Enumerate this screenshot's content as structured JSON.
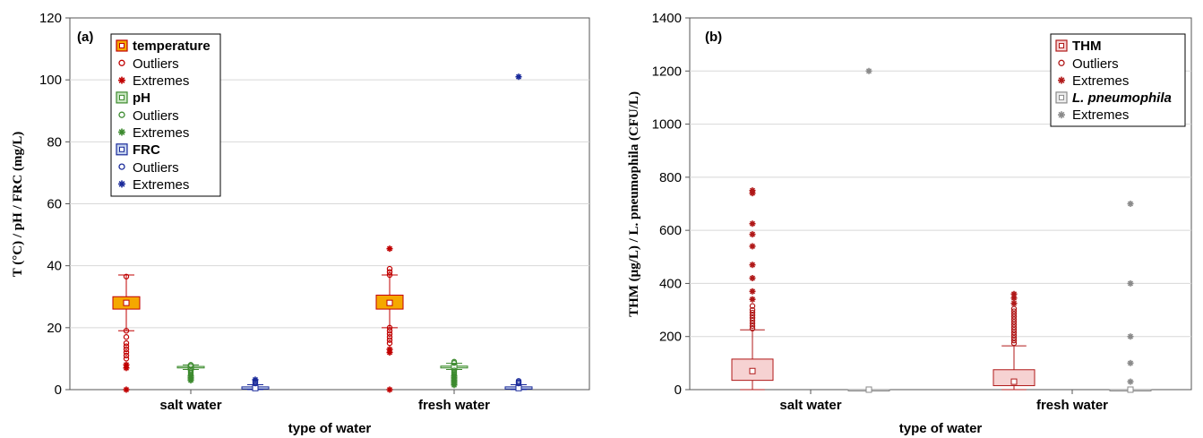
{
  "chart_data": [
    {
      "type": "box",
      "panel_label": "(a)",
      "xlabel": "type of water",
      "ylabel": "T (°C) / pH / FRC (mg/L)",
      "ylim": [
        0,
        120
      ],
      "yticks": [
        0,
        20,
        40,
        60,
        80,
        100,
        120
      ],
      "grid": "horizontal",
      "legend_position": "top-left",
      "categories": [
        "salt water",
        "fresh water"
      ],
      "legend": [
        {
          "label": "temperature",
          "kind": "box",
          "bold": true,
          "color": "#f5a800",
          "edge": "#c00000"
        },
        {
          "label": "Outliers",
          "kind": "outlier",
          "color": "#c00000"
        },
        {
          "label": "Extremes",
          "kind": "extreme",
          "color": "#c00000"
        },
        {
          "label": "pH",
          "kind": "box",
          "bold": true,
          "color": "#c8e6c0",
          "edge": "#3c8a2e"
        },
        {
          "label": "Outliers",
          "kind": "outlier",
          "color": "#3c8a2e"
        },
        {
          "label": "Extremes",
          "kind": "extreme",
          "color": "#3c8a2e"
        },
        {
          "label": "FRC",
          "kind": "box",
          "bold": true,
          "color": "#c6d4ee",
          "edge": "#1a2a9a"
        },
        {
          "label": "Outliers",
          "kind": "outlier",
          "color": "#1a2a9a"
        },
        {
          "label": "Extremes",
          "kind": "extreme",
          "color": "#1a2a9a"
        }
      ],
      "series": [
        {
          "name": "temperature",
          "fill": "#f5a800",
          "edge": "#c00000",
          "median_marker": "#ffffff",
          "boxes": [
            {
              "category": "salt water",
              "whisker_low": 19,
              "q1": 26,
              "median": 28,
              "q3": 30,
              "whisker_high": 37,
              "outliers": [
                36.5,
                19,
                17,
                15,
                14,
                13,
                12,
                11,
                10
              ],
              "extremes": [
                8,
                7,
                0
              ]
            },
            {
              "category": "fresh water",
              "whisker_low": 20,
              "q1": 26,
              "median": 28,
              "q3": 30.5,
              "whisker_high": 37,
              "outliers": [
                39,
                38,
                37,
                20,
                19,
                18,
                17,
                16,
                15
              ],
              "extremes": [
                45.5,
                13,
                12,
                0
              ]
            }
          ]
        },
        {
          "name": "pH",
          "fill": "#c8e6c0",
          "edge": "#3c8a2e",
          "median_marker": "#3c8a2e",
          "boxes": [
            {
              "category": "salt water",
              "whisker_low": 6.5,
              "q1": 7,
              "median": 7.2,
              "q3": 7.5,
              "whisker_high": 8,
              "outliers": [
                8,
                7.8,
                6.5,
                6,
                5.5,
                5
              ],
              "extremes": [
                4.5,
                4,
                3.5,
                3
              ]
            },
            {
              "category": "fresh water",
              "whisker_low": 6.5,
              "q1": 7,
              "median": 7.3,
              "q3": 7.6,
              "whisker_high": 8.5,
              "outliers": [
                9,
                8.6,
                6.2,
                5.8,
                5.4,
                5
              ],
              "extremes": [
                4.5,
                4,
                3.5,
                3,
                2.5,
                2,
                1.5
              ]
            }
          ]
        },
        {
          "name": "FRC",
          "fill": "#c6d4ee",
          "edge": "#1a2a9a",
          "median_marker": "#1a2a9a",
          "boxes": [
            {
              "category": "salt water",
              "whisker_low": 0,
              "q1": 0.2,
              "median": 0.5,
              "q3": 0.9,
              "whisker_high": 1.6,
              "outliers": [
                2,
                2.4,
                2.8
              ],
              "extremes": [
                3.2
              ]
            },
            {
              "category": "fresh water",
              "whisker_low": 0,
              "q1": 0.2,
              "median": 0.5,
              "q3": 0.9,
              "whisker_high": 1.6,
              "outliers": [
                2,
                2.4,
                2.8
              ],
              "extremes": [
                101
              ]
            }
          ]
        }
      ]
    },
    {
      "type": "box",
      "panel_label": "(b)",
      "xlabel": "type of water",
      "ylabel": "THM (μg/L) / L. pneumophila (CFU/L)",
      "ylim": [
        0,
        1400
      ],
      "yticks": [
        0,
        200,
        400,
        600,
        800,
        1000,
        1200,
        1400
      ],
      "grid": "horizontal",
      "legend_position": "top-right",
      "categories": [
        "salt water",
        "fresh water"
      ],
      "legend": [
        {
          "label": "THM",
          "kind": "box",
          "bold": true,
          "color": "#f6d2d2",
          "edge": "#b01818"
        },
        {
          "label": "Outliers",
          "kind": "outlier",
          "color": "#b01818"
        },
        {
          "label": "Extremes",
          "kind": "extreme",
          "color": "#b01818"
        },
        {
          "label": "L. pneumophila",
          "kind": "box",
          "bold": true,
          "italic": true,
          "color": "#eeeeee",
          "edge": "#8a8a8a"
        },
        {
          "label": "Extremes",
          "kind": "extreme",
          "color": "#8a8a8a"
        }
      ],
      "series": [
        {
          "name": "THM",
          "fill": "#f6d2d2",
          "edge": "#b01818",
          "median_marker": "#b01818",
          "boxes": [
            {
              "category": "salt water",
              "whisker_low": 0,
              "q1": 35,
              "median": 70,
              "q3": 115,
              "whisker_high": 225,
              "outliers": [
                230,
                240,
                250,
                260,
                270,
                280,
                290,
                300,
                315
              ],
              "extremes": [
                340,
                370,
                420,
                470,
                540,
                585,
                625,
                740,
                750
              ]
            },
            {
              "category": "fresh water",
              "whisker_low": 0,
              "q1": 15,
              "median": 30,
              "q3": 75,
              "whisker_high": 165,
              "outliers": [
                175,
                185,
                195,
                205,
                215,
                225,
                235,
                245,
                255,
                265,
                275,
                285,
                295,
                305
              ],
              "extremes": [
                325,
                345,
                360
              ]
            }
          ]
        },
        {
          "name": "L. pneumophila",
          "fill": "#eeeeee",
          "edge": "#8a8a8a",
          "median_marker": "#8a8a8a",
          "boxes": [
            {
              "category": "salt water",
              "whisker_low": 0,
              "q1": 0,
              "median": 0,
              "q3": 0,
              "whisker_high": 0,
              "outliers": [],
              "extremes": [
                1200
              ]
            },
            {
              "category": "fresh water",
              "whisker_low": 0,
              "q1": 0,
              "median": 0,
              "q3": 0,
              "whisker_high": 0,
              "outliers": [],
              "extremes": [
                30,
                100,
                200,
                400,
                700
              ]
            }
          ]
        }
      ]
    }
  ]
}
